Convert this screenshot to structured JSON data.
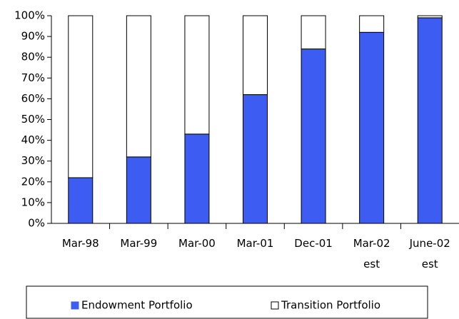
{
  "chart_data": {
    "type": "stacked_bar",
    "categories": [
      "Mar-98",
      "Mar-99",
      "Mar-00",
      "Mar-01",
      "Dec-01",
      "Mar-02 est",
      "June-02 est"
    ],
    "series": [
      {
        "name": "Endowment Portfolio",
        "color": "#3d5cf2",
        "values": [
          22,
          32,
          43,
          62,
          84,
          92,
          99
        ]
      },
      {
        "name": "Transition Portfolio",
        "color": "#ffffff",
        "values": [
          78,
          68,
          57,
          38,
          16,
          8,
          1
        ]
      }
    ],
    "ylim": [
      0,
      100
    ],
    "yticks": [
      {
        "value": 0,
        "label": "0%"
      },
      {
        "value": 10,
        "label": "10%"
      },
      {
        "value": 20,
        "label": "20%"
      },
      {
        "value": 30,
        "label": "30%"
      },
      {
        "value": 40,
        "label": "40%"
      },
      {
        "value": 50,
        "label": "50%"
      },
      {
        "value": 60,
        "label": "60%"
      },
      {
        "value": 70,
        "label": "70%"
      },
      {
        "value": 80,
        "label": "80%"
      },
      {
        "value": 90,
        "label": "90%"
      },
      {
        "value": 100,
        "label": "100%"
      }
    ],
    "grid": false,
    "legend": "bottom"
  }
}
